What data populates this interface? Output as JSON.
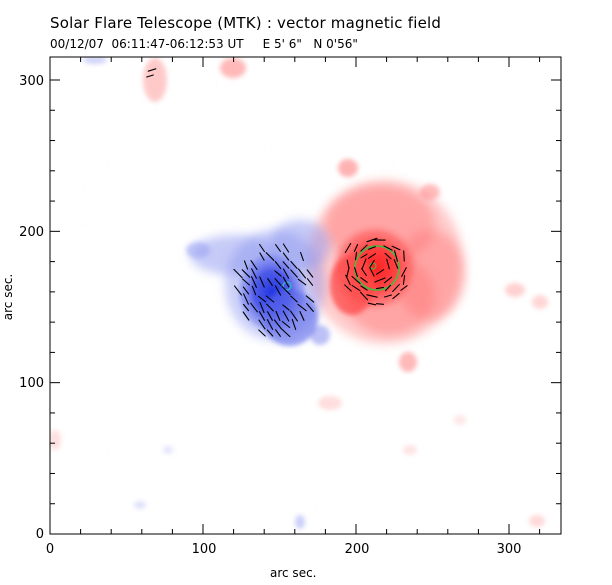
{
  "header": {
    "title": "Solar Flare Telescope (MTK) : vector magnetic field",
    "subtitle": "00/12/07  06:11:47-06:12:53 UT     E 5' 6\"   N 0'56\""
  },
  "axes": {
    "xlabel": "arc sec.",
    "ylabel": "arc sec.",
    "xlim": [
      0,
      335
    ],
    "ylim": [
      0,
      318
    ],
    "xticks": [
      "0",
      "100",
      "200",
      "300"
    ],
    "yticks": [
      "0",
      "100",
      "200",
      "300"
    ]
  },
  "colors": {
    "positive_polarity": "#ff3030",
    "negative_polarity": "#2f3fe0",
    "contour": "#3fbf3f",
    "background": "#ffffff"
  },
  "chart_data": {
    "type": "heatmap",
    "description_units": "arc sec.",
    "x_range": [
      0,
      335
    ],
    "y_range": [
      0,
      318
    ],
    "regions": [
      {
        "polarity": "negative",
        "center": [
          155,
          165
        ],
        "radius": [
          30,
          40
        ]
      },
      {
        "polarity": "positive",
        "center": [
          220,
          180
        ],
        "radius": [
          45,
          50
        ]
      }
    ],
    "contours": [
      {
        "center": [
          215,
          175
        ],
        "radius": 14
      },
      {
        "center": [
          155,
          164
        ],
        "radius": 3
      }
    ]
  }
}
